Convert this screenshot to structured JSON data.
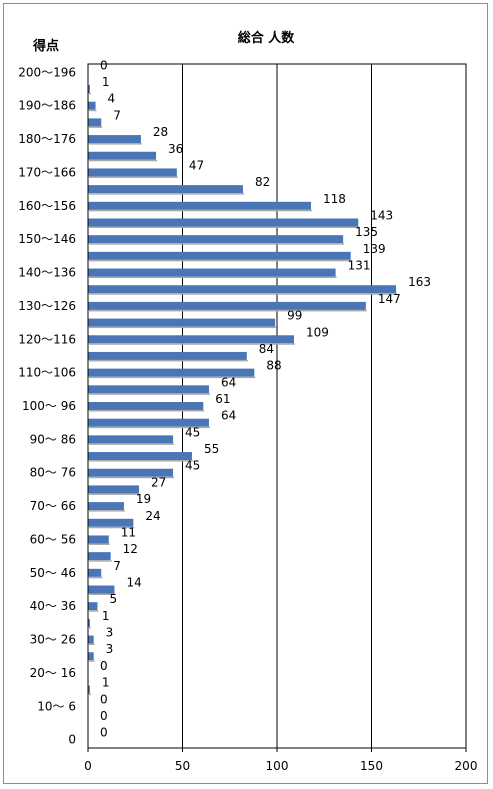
{
  "chart_data": {
    "type": "bar",
    "orientation": "horizontal",
    "title": "総合 人数",
    "ylabel": "得点",
    "xlabel": "",
    "xlim": [
      0,
      200
    ],
    "x_ticks": [
      "0",
      "50",
      "100",
      "150",
      "200"
    ],
    "grid": "vertical",
    "legend": "none",
    "bar_color": "#4a76b8",
    "categories": [
      "200〜196",
      "",
      "190〜186",
      "",
      "180〜176",
      "",
      "170〜166",
      "",
      "160〜156",
      "",
      "150〜146",
      "",
      "140〜136",
      "",
      "130〜126",
      "",
      "120〜116",
      "",
      "110〜106",
      "",
      "100〜 96",
      "",
      "90〜 86",
      "",
      "80〜 76",
      "",
      "70〜 66",
      "",
      "60〜 56",
      "",
      "50〜 46",
      "",
      "40〜 36",
      "",
      "30〜 26",
      "",
      "20〜 16",
      "",
      "10〜 6",
      "",
      "0"
    ],
    "values": [
      0,
      1,
      4,
      7,
      28,
      36,
      47,
      82,
      118,
      143,
      135,
      139,
      131,
      163,
      147,
      99,
      109,
      84,
      88,
      64,
      61,
      64,
      45,
      55,
      45,
      27,
      19,
      24,
      11,
      12,
      7,
      14,
      5,
      1,
      3,
      3,
      0,
      1,
      0,
      0,
      0
    ],
    "value_labels": [
      "0",
      "1",
      "4",
      "7",
      "28",
      "36",
      "47",
      "82",
      "118",
      "143",
      "135",
      "139",
      "131",
      "163",
      "147",
      "99",
      "109",
      "84",
      "88",
      "64",
      "61",
      "64",
      "45",
      "55",
      "45",
      "27",
      "19",
      "24",
      "11",
      "12",
      "7",
      "14",
      "5",
      "1",
      "3",
      "3",
      "0",
      "1",
      "0",
      "0",
      "0"
    ]
  }
}
